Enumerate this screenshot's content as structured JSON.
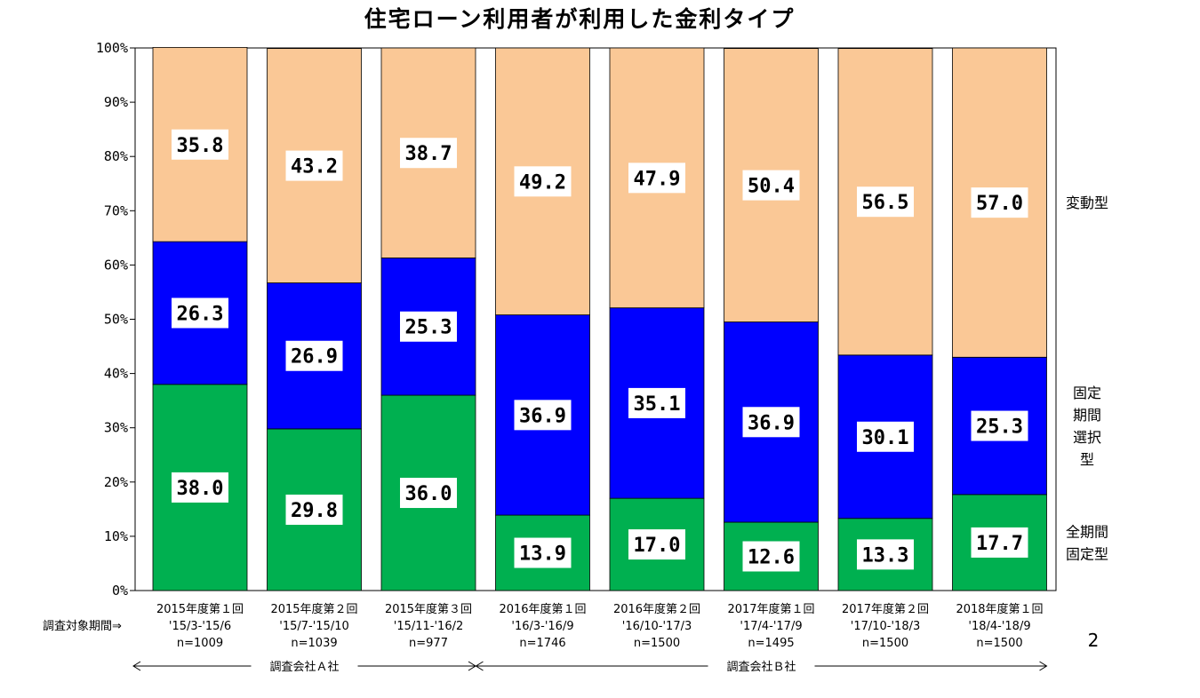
{
  "chart_data": {
    "type": "bar",
    "stacked": true,
    "title": "住宅ローン利用者が利用した金利タイプ",
    "ylim": [
      0,
      100
    ],
    "yticks": [
      "0%",
      "10%",
      "20%",
      "30%",
      "40%",
      "50%",
      "60%",
      "70%",
      "80%",
      "90%",
      "100%"
    ],
    "grid": false,
    "categories": [
      [
        "2015年度第１回",
        "'15/3-'15/6",
        "n=1009"
      ],
      [
        "2015年度第２回",
        "'15/7-'15/10",
        "n=1039"
      ],
      [
        "2015年度第３回",
        "'15/11-'16/2",
        "n=977"
      ],
      [
        "2016年度第１回",
        "'16/3-'16/9",
        "n=1746"
      ],
      [
        "2016年度第２回",
        "'16/10-'17/3",
        "n=1500"
      ],
      [
        "2017年度第１回",
        "'17/4-'17/9",
        "n=1495"
      ],
      [
        "2017年度第２回",
        "'17/10-'18/3",
        "n=1500"
      ],
      [
        "2018年度第１回",
        "'18/4-'18/9",
        "n=1500"
      ]
    ],
    "series": [
      {
        "name": "全期間固定型",
        "legend_lines": [
          "全期間",
          "固定型"
        ],
        "color": "#00b050",
        "values": [
          38.0,
          29.8,
          36.0,
          13.9,
          17.0,
          12.6,
          13.3,
          17.7
        ],
        "labels": [
          "38.0",
          "29.8",
          "36.0",
          "13.9",
          "17.0",
          "12.6",
          "13.3",
          "17.7"
        ]
      },
      {
        "name": "固定期間選択型",
        "legend_lines": [
          "固定",
          "期間",
          "選択",
          "型"
        ],
        "color": "#0000ff",
        "values": [
          26.3,
          26.9,
          25.3,
          36.9,
          35.1,
          36.9,
          30.1,
          25.3
        ],
        "labels": [
          "26.3",
          "26.9",
          "25.3",
          "36.9",
          "35.1",
          "36.9",
          "30.1",
          "25.3"
        ]
      },
      {
        "name": "変動型",
        "legend_lines": [
          "変動型"
        ],
        "color": "#fac896",
        "values": [
          35.8,
          43.2,
          38.7,
          49.2,
          47.9,
          50.4,
          56.5,
          57.0
        ],
        "labels": [
          "35.8",
          "43.2",
          "38.7",
          "49.2",
          "47.9",
          "50.4",
          "56.5",
          "57.0"
        ]
      }
    ],
    "survey_period_label": "調査対象期間⇒",
    "companies": [
      {
        "label": "調査会社Ａ社",
        "from": 0,
        "to": 2
      },
      {
        "label": "調査会社Ｂ社",
        "from": 3,
        "to": 7
      }
    ],
    "page_number": "2"
  }
}
